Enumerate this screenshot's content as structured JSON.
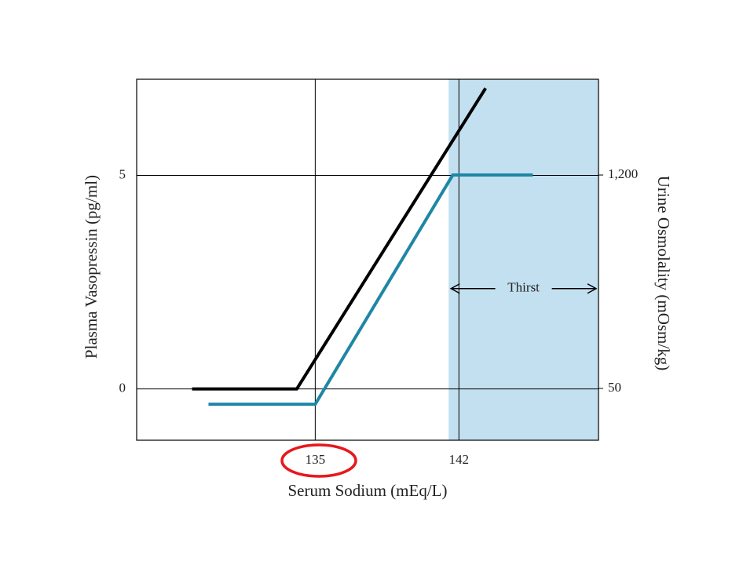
{
  "chart_data": {
    "type": "line",
    "x_label": "Serum Sodium (mEq/L)",
    "y_label": "Plasma Vasopressin (pg/ml)",
    "y2_label": "Urine Osmolality (mOsm/kg)",
    "xlim": [
      126.3,
      148.8
    ],
    "xticks": [
      135,
      142
    ],
    "ylim": [
      -1.2,
      7.25
    ],
    "yticks": [
      0,
      5
    ],
    "y2lim": [
      -229,
      1716
    ],
    "y2ticks": [
      50,
      {
        "value": 1200,
        "label": "1,200"
      }
    ],
    "grid": true,
    "shade_from": 141.5,
    "shade_color": "#c3e0f0",
    "annotation": {
      "text": "Thirst",
      "y": 2.35
    },
    "series": [
      {
        "color": "#000000",
        "x": [
          129.0,
          134.1,
          143.3
        ],
        "values": [
          0,
          0,
          7.04
        ]
      },
      {
        "color": "#1f86a6",
        "axis": "y2",
        "x": [
          129.8,
          135,
          141.7,
          145.6
        ],
        "values": [
          -35,
          -35,
          1200,
          1200
        ]
      }
    ]
  }
}
